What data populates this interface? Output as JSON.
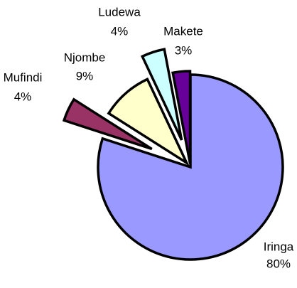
{
  "chart_data": {
    "type": "pie",
    "categories": [
      "Iringa",
      "Mufindi",
      "Njombe",
      "Ludewa",
      "Makete"
    ],
    "values": [
      80,
      4,
      9,
      4,
      3
    ],
    "value_labels": [
      "80%",
      "4%",
      "9%",
      "4%",
      "3%"
    ],
    "colors": [
      "#9999ff",
      "#993366",
      "#ffffcc",
      "#ccffff",
      "#660099"
    ]
  }
}
